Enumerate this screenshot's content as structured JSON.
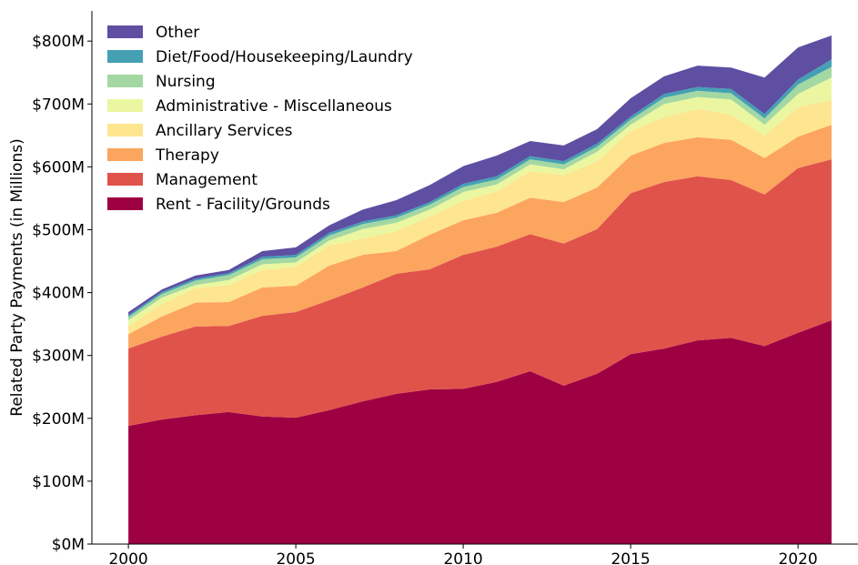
{
  "chart_data": {
    "type": "stacked-area",
    "y_label": "Related Party Payments (in Millions)",
    "x": [
      2000,
      2001,
      2002,
      2003,
      2004,
      2005,
      2006,
      2007,
      2008,
      2009,
      2010,
      2011,
      2012,
      2013,
      2014,
      2015,
      2016,
      2017,
      2018,
      2019,
      2020,
      2021
    ],
    "series": [
      {
        "name": "Rent - Facility/Grounds",
        "color": "#9e0142",
        "values": [
          188,
          198,
          205,
          210,
          203,
          201,
          213,
          227,
          239,
          246,
          247,
          258,
          275,
          252,
          271,
          302,
          311,
          324,
          328,
          315,
          336,
          356
        ]
      },
      {
        "name": "Management",
        "color": "#e0534a",
        "values": [
          123,
          132,
          141,
          137,
          160,
          168,
          175,
          181,
          191,
          191,
          213,
          215,
          218,
          226,
          230,
          256,
          265,
          261,
          251,
          241,
          262,
          256
        ]
      },
      {
        "name": "Therapy",
        "color": "#fba55f",
        "values": [
          23,
          32,
          38,
          38,
          45,
          42,
          55,
          52,
          36,
          55,
          55,
          54,
          58,
          66,
          66,
          60,
          62,
          62,
          64,
          58,
          50,
          55
        ]
      },
      {
        "name": "Ancillary Services",
        "color": "#fee590",
        "values": [
          13,
          20,
          23,
          27,
          28,
          30,
          32,
          26,
          32,
          29,
          31,
          34,
          42,
          43,
          42,
          39,
          41,
          45,
          40,
          36,
          47,
          39
        ]
      },
      {
        "name": "Administrative - Miscellaneous",
        "color": "#eaf7a0",
        "values": [
          9,
          10,
          5,
          8,
          9,
          7,
          8,
          15,
          13,
          11,
          14,
          11,
          11,
          9,
          15,
          10,
          21,
          19,
          24,
          17,
          21,
          36
        ]
      },
      {
        "name": "Nursing",
        "color": "#a3d8a3",
        "values": [
          5,
          6,
          7,
          8,
          8,
          8,
          8,
          8,
          8,
          8,
          8,
          8,
          8,
          8,
          8,
          8,
          10,
          10,
          10,
          10,
          15,
          17
        ]
      },
      {
        "name": "Diet/Food/Housekeeping/Laundry",
        "color": "#45a0b3",
        "values": [
          3,
          3,
          3,
          3,
          4,
          4,
          4,
          4,
          4,
          4,
          5,
          5,
          5,
          5,
          5,
          5,
          6,
          6,
          7,
          7,
          8,
          12
        ]
      },
      {
        "name": "Other",
        "color": "#5e4fa2",
        "values": [
          5,
          4,
          5,
          5,
          9,
          12,
          12,
          19,
          24,
          27,
          28,
          33,
          24,
          25,
          23,
          29,
          28,
          34,
          34,
          58,
          51,
          38
        ]
      }
    ],
    "xlim": [
      1998.91,
      2021.79
    ],
    "xticks": [
      2000,
      2005,
      2010,
      2015,
      2020
    ],
    "ylim": [
      0,
      848
    ],
    "yticks": [
      {
        "value": 0,
        "label": "$0M"
      },
      {
        "value": 100,
        "label": "$100M"
      },
      {
        "value": 200,
        "label": "$200M"
      },
      {
        "value": 300,
        "label": "$300M"
      },
      {
        "value": 400,
        "label": "$400M"
      },
      {
        "value": 500,
        "label": "$500M"
      },
      {
        "value": 600,
        "label": "$600M"
      },
      {
        "value": 700,
        "label": "$700M"
      },
      {
        "value": 800,
        "label": "$800M"
      }
    ],
    "legend": "upper-left",
    "grid": false
  }
}
